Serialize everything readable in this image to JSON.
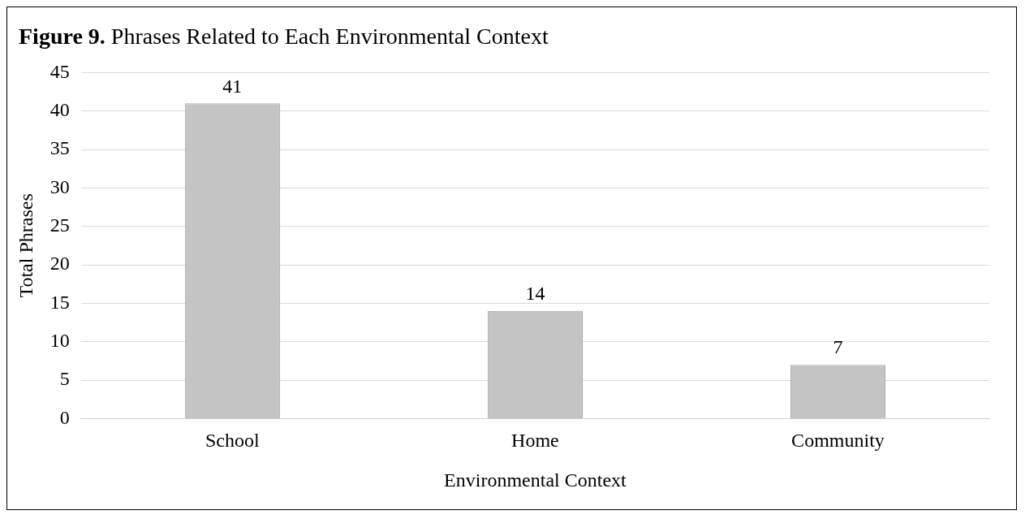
{
  "chart_data": {
    "type": "bar",
    "title": "Figure 9. Phrases Related to Each Environmental Context",
    "xlabel": "Environmental Context",
    "ylabel": "Total Phrases",
    "categories": [
      "School",
      "Home",
      "Community"
    ],
    "values": [
      41,
      14,
      7
    ],
    "color": "#c4c4c4",
    "ylim": [
      0,
      45
    ],
    "yticks": [
      0,
      5,
      10,
      15,
      20,
      25,
      30,
      35,
      40,
      45
    ],
    "grid": "y",
    "data_labels": true,
    "legend": false
  }
}
